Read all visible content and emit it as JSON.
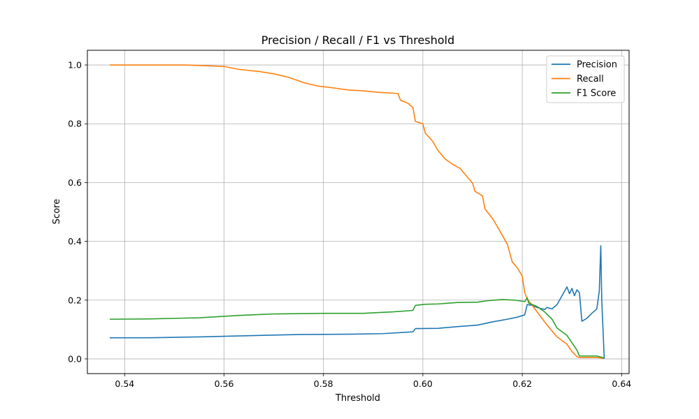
{
  "chart_data": {
    "type": "line",
    "title": "Precision / Recall / F1 vs Threshold",
    "xlabel": "Threshold",
    "ylabel": "Score",
    "xlim": [
      0.5325,
      0.6415
    ],
    "ylim": [
      -0.05,
      1.05
    ],
    "x_ticks": [
      0.54,
      0.56,
      0.58,
      0.6,
      0.62,
      0.64
    ],
    "x_tick_labels": [
      "0.54",
      "0.56",
      "0.58",
      "0.60",
      "0.62",
      "0.64"
    ],
    "y_ticks": [
      0.0,
      0.2,
      0.4,
      0.6,
      0.8,
      1.0
    ],
    "y_tick_labels": [
      "0.0",
      "0.2",
      "0.4",
      "0.6",
      "0.8",
      "1.0"
    ],
    "grid": true,
    "legend_position": "top-right",
    "series": [
      {
        "name": "Precision",
        "color": "#1f77b4",
        "points": [
          [
            0.537,
            0.072
          ],
          [
            0.545,
            0.072
          ],
          [
            0.555,
            0.075
          ],
          [
            0.565,
            0.079
          ],
          [
            0.575,
            0.083
          ],
          [
            0.585,
            0.084
          ],
          [
            0.592,
            0.086
          ],
          [
            0.598,
            0.092
          ],
          [
            0.5985,
            0.103
          ],
          [
            0.603,
            0.104
          ],
          [
            0.607,
            0.11
          ],
          [
            0.611,
            0.115
          ],
          [
            0.614,
            0.126
          ],
          [
            0.617,
            0.135
          ],
          [
            0.619,
            0.142
          ],
          [
            0.6205,
            0.15
          ],
          [
            0.621,
            0.185
          ],
          [
            0.622,
            0.182
          ],
          [
            0.623,
            0.175
          ],
          [
            0.6245,
            0.168
          ],
          [
            0.625,
            0.175
          ],
          [
            0.626,
            0.17
          ],
          [
            0.627,
            0.185
          ],
          [
            0.628,
            0.215
          ],
          [
            0.6285,
            0.23
          ],
          [
            0.629,
            0.245
          ],
          [
            0.6295,
            0.222
          ],
          [
            0.63,
            0.24
          ],
          [
            0.6305,
            0.215
          ],
          [
            0.631,
            0.235
          ],
          [
            0.6315,
            0.225
          ],
          [
            0.632,
            0.128
          ],
          [
            0.633,
            0.138
          ],
          [
            0.634,
            0.155
          ],
          [
            0.635,
            0.17
          ],
          [
            0.6355,
            0.23
          ],
          [
            0.6358,
            0.385
          ],
          [
            0.636,
            0.2
          ],
          [
            0.6365,
            0.0
          ]
        ]
      },
      {
        "name": "Recall",
        "color": "#ff7f0e",
        "points": [
          [
            0.537,
            1.0
          ],
          [
            0.552,
            1.0
          ],
          [
            0.557,
            0.997
          ],
          [
            0.56,
            0.995
          ],
          [
            0.563,
            0.985
          ],
          [
            0.567,
            0.978
          ],
          [
            0.57,
            0.97
          ],
          [
            0.573,
            0.958
          ],
          [
            0.576,
            0.94
          ],
          [
            0.579,
            0.928
          ],
          [
            0.582,
            0.922
          ],
          [
            0.585,
            0.915
          ],
          [
            0.588,
            0.912
          ],
          [
            0.591,
            0.907
          ],
          [
            0.595,
            0.903
          ],
          [
            0.5955,
            0.88
          ],
          [
            0.597,
            0.87
          ],
          [
            0.598,
            0.855
          ],
          [
            0.5985,
            0.808
          ],
          [
            0.6,
            0.8
          ],
          [
            0.6005,
            0.768
          ],
          [
            0.602,
            0.74
          ],
          [
            0.603,
            0.71
          ],
          [
            0.6045,
            0.68
          ],
          [
            0.606,
            0.662
          ],
          [
            0.6075,
            0.648
          ],
          [
            0.609,
            0.618
          ],
          [
            0.61,
            0.598
          ],
          [
            0.6105,
            0.57
          ],
          [
            0.612,
            0.555
          ],
          [
            0.6125,
            0.51
          ],
          [
            0.614,
            0.478
          ],
          [
            0.615,
            0.45
          ],
          [
            0.616,
            0.42
          ],
          [
            0.617,
            0.39
          ],
          [
            0.618,
            0.33
          ],
          [
            0.619,
            0.31
          ],
          [
            0.62,
            0.282
          ],
          [
            0.6205,
            0.225
          ],
          [
            0.621,
            0.205
          ],
          [
            0.623,
            0.16
          ],
          [
            0.625,
            0.115
          ],
          [
            0.627,
            0.075
          ],
          [
            0.629,
            0.05
          ],
          [
            0.63,
            0.025
          ],
          [
            0.631,
            0.008
          ],
          [
            0.6315,
            0.005
          ],
          [
            0.635,
            0.005
          ],
          [
            0.6365,
            0.002
          ]
        ]
      },
      {
        "name": "F1 Score",
        "color": "#2ca02c",
        "points": [
          [
            0.537,
            0.135
          ],
          [
            0.545,
            0.136
          ],
          [
            0.555,
            0.14
          ],
          [
            0.563,
            0.148
          ],
          [
            0.57,
            0.153
          ],
          [
            0.58,
            0.155
          ],
          [
            0.588,
            0.155
          ],
          [
            0.594,
            0.16
          ],
          [
            0.598,
            0.165
          ],
          [
            0.5985,
            0.182
          ],
          [
            0.6005,
            0.186
          ],
          [
            0.603,
            0.187
          ],
          [
            0.607,
            0.192
          ],
          [
            0.611,
            0.193
          ],
          [
            0.613,
            0.198
          ],
          [
            0.616,
            0.202
          ],
          [
            0.6185,
            0.2
          ],
          [
            0.6205,
            0.195
          ],
          [
            0.621,
            0.208
          ],
          [
            0.6213,
            0.19
          ],
          [
            0.623,
            0.178
          ],
          [
            0.6245,
            0.16
          ],
          [
            0.626,
            0.135
          ],
          [
            0.627,
            0.105
          ],
          [
            0.629,
            0.08
          ],
          [
            0.63,
            0.055
          ],
          [
            0.631,
            0.03
          ],
          [
            0.6315,
            0.01
          ],
          [
            0.635,
            0.01
          ],
          [
            0.6365,
            0.003
          ]
        ]
      }
    ]
  }
}
